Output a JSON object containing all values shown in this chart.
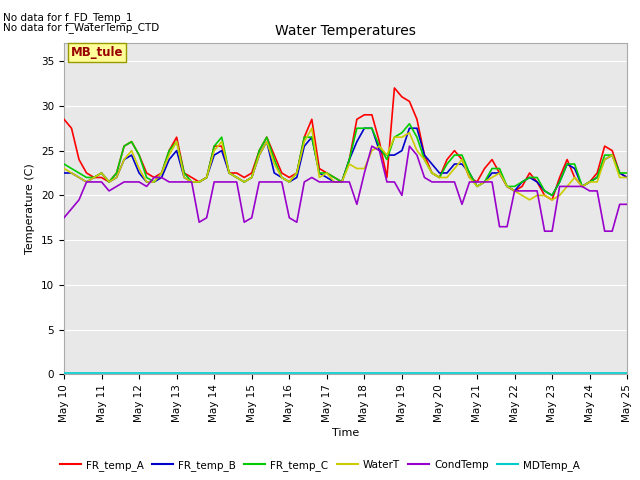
{
  "title": "Water Temperatures",
  "xlabel": "Time",
  "ylabel": "Temperature (C)",
  "ylim": [
    0,
    37
  ],
  "yticks": [
    0,
    5,
    10,
    15,
    20,
    25,
    30,
    35
  ],
  "fig_bg_color": "#ffffff",
  "plot_bg_color": "#e8e8e8",
  "annotations": [
    "No data for f_FD_Temp_1",
    "No data for f_WaterTemp_CTD"
  ],
  "mb_tule_label": "MB_tule",
  "mb_tule_color": "#990000",
  "mb_tule_bg": "#ffff99",
  "mb_tule_edge": "#999900",
  "legend_entries": [
    {
      "label": "FR_temp_A",
      "color": "#ff0000"
    },
    {
      "label": "FR_temp_B",
      "color": "#0000cc"
    },
    {
      "label": "FR_temp_C",
      "color": "#00cc00"
    },
    {
      "label": "WaterT",
      "color": "#cccc00"
    },
    {
      "label": "CondTemp",
      "color": "#9900cc"
    },
    {
      "label": "MDTemp_A",
      "color": "#00cccc"
    }
  ],
  "date_ticks": [
    "May 10",
    "May 11",
    "May 12",
    "May 13",
    "May 14",
    "May 15",
    "May 16",
    "May 17",
    "May 18",
    "May 19",
    "May 20",
    "May 21",
    "May 22",
    "May 23",
    "May 24",
    "May 25"
  ],
  "series": {
    "FR_temp_A": {
      "color": "#ff0000",
      "lw": 1.2,
      "x": [
        0.0,
        0.2,
        0.4,
        0.6,
        0.8,
        1.0,
        1.2,
        1.4,
        1.6,
        1.8,
        2.0,
        2.2,
        2.4,
        2.6,
        2.8,
        3.0,
        3.2,
        3.4,
        3.6,
        3.8,
        4.0,
        4.2,
        4.4,
        4.6,
        4.8,
        5.0,
        5.2,
        5.4,
        5.6,
        5.8,
        6.0,
        6.2,
        6.4,
        6.6,
        6.8,
        7.0,
        7.2,
        7.4,
        7.6,
        7.8,
        8.0,
        8.2,
        8.4,
        8.6,
        8.8,
        9.0,
        9.2,
        9.4,
        9.6,
        9.8,
        10.0,
        10.2,
        10.4,
        10.6,
        10.8,
        11.0,
        11.2,
        11.4,
        11.6,
        11.8,
        12.0,
        12.2,
        12.4,
        12.6,
        12.8,
        13.0,
        13.2,
        13.4,
        13.6,
        13.8,
        14.0,
        14.2,
        14.4,
        14.6,
        14.8,
        15.0
      ],
      "y": [
        28.5,
        27.5,
        24.0,
        22.5,
        22.0,
        22.0,
        21.5,
        22.5,
        25.5,
        26.0,
        24.5,
        22.5,
        22.0,
        22.5,
        25.0,
        26.5,
        22.5,
        22.0,
        21.5,
        22.0,
        25.5,
        25.5,
        22.5,
        22.5,
        22.0,
        22.5,
        25.0,
        26.5,
        24.5,
        22.5,
        22.0,
        22.5,
        26.5,
        28.5,
        23.0,
        22.5,
        22.0,
        21.5,
        24.0,
        28.5,
        29.0,
        29.0,
        26.0,
        22.0,
        32.0,
        31.0,
        30.5,
        28.5,
        24.5,
        22.5,
        22.0,
        24.0,
        25.0,
        24.0,
        22.0,
        21.5,
        23.0,
        24.0,
        22.5,
        21.0,
        20.5,
        21.0,
        22.5,
        21.5,
        20.0,
        19.5,
        22.0,
        24.0,
        22.0,
        21.0,
        21.5,
        22.5,
        25.5,
        25.0,
        22.5,
        22.0
      ]
    },
    "FR_temp_B": {
      "color": "#0000cc",
      "lw": 1.2,
      "x": [
        0.0,
        0.2,
        0.4,
        0.6,
        0.8,
        1.0,
        1.2,
        1.4,
        1.6,
        1.8,
        2.0,
        2.2,
        2.4,
        2.6,
        2.8,
        3.0,
        3.2,
        3.4,
        3.6,
        3.8,
        4.0,
        4.2,
        4.4,
        4.6,
        4.8,
        5.0,
        5.2,
        5.4,
        5.6,
        5.8,
        6.0,
        6.2,
        6.4,
        6.6,
        6.8,
        7.0,
        7.2,
        7.4,
        7.6,
        7.8,
        8.0,
        8.2,
        8.4,
        8.6,
        8.8,
        9.0,
        9.2,
        9.4,
        9.6,
        9.8,
        10.0,
        10.2,
        10.4,
        10.6,
        10.8,
        11.0,
        11.2,
        11.4,
        11.6,
        11.8,
        12.0,
        12.2,
        12.4,
        12.6,
        12.8,
        13.0,
        13.2,
        13.4,
        13.6,
        13.8,
        14.0,
        14.2,
        14.4,
        14.6,
        14.8,
        15.0
      ],
      "y": [
        22.5,
        22.5,
        22.0,
        21.5,
        22.0,
        22.5,
        21.5,
        22.0,
        24.0,
        24.5,
        22.5,
        21.5,
        21.5,
        22.0,
        24.0,
        25.0,
        22.0,
        21.5,
        21.5,
        22.0,
        24.5,
        25.0,
        22.5,
        22.0,
        21.5,
        22.0,
        24.5,
        26.0,
        22.5,
        22.0,
        21.5,
        22.0,
        25.5,
        26.5,
        22.5,
        22.0,
        21.5,
        21.5,
        24.0,
        26.0,
        27.5,
        27.5,
        25.0,
        24.5,
        24.5,
        25.0,
        27.5,
        27.5,
        24.5,
        23.5,
        22.5,
        22.5,
        23.5,
        23.5,
        22.5,
        21.0,
        21.5,
        22.5,
        22.5,
        21.0,
        20.5,
        21.5,
        22.0,
        21.5,
        20.5,
        20.0,
        21.5,
        23.5,
        23.0,
        21.0,
        21.5,
        22.0,
        24.0,
        24.5,
        22.5,
        22.0
      ]
    },
    "FR_temp_C": {
      "color": "#00cc00",
      "lw": 1.2,
      "x": [
        0.0,
        0.2,
        0.4,
        0.6,
        0.8,
        1.0,
        1.2,
        1.4,
        1.6,
        1.8,
        2.0,
        2.2,
        2.4,
        2.6,
        2.8,
        3.0,
        3.2,
        3.4,
        3.6,
        3.8,
        4.0,
        4.2,
        4.4,
        4.6,
        4.8,
        5.0,
        5.2,
        5.4,
        5.6,
        5.8,
        6.0,
        6.2,
        6.4,
        6.6,
        6.8,
        7.0,
        7.2,
        7.4,
        7.6,
        7.8,
        8.0,
        8.2,
        8.4,
        8.6,
        8.8,
        9.0,
        9.2,
        9.4,
        9.6,
        9.8,
        10.0,
        10.2,
        10.4,
        10.6,
        10.8,
        11.0,
        11.2,
        11.4,
        11.6,
        11.8,
        12.0,
        12.2,
        12.4,
        12.6,
        12.8,
        13.0,
        13.2,
        13.4,
        13.6,
        13.8,
        14.0,
        14.2,
        14.4,
        14.6,
        14.8,
        15.0
      ],
      "y": [
        23.5,
        23.0,
        22.5,
        22.0,
        22.0,
        22.5,
        21.5,
        22.5,
        25.5,
        26.0,
        24.5,
        22.0,
        21.5,
        22.5,
        25.0,
        26.0,
        22.5,
        21.5,
        21.5,
        22.0,
        25.5,
        26.5,
        22.5,
        22.0,
        21.5,
        22.0,
        25.0,
        26.5,
        24.0,
        22.0,
        21.5,
        22.5,
        26.5,
        26.5,
        22.5,
        22.5,
        22.0,
        21.5,
        24.0,
        27.5,
        27.5,
        27.5,
        25.5,
        24.0,
        26.5,
        27.0,
        28.0,
        26.5,
        24.0,
        22.5,
        22.0,
        23.5,
        24.5,
        24.5,
        22.5,
        21.0,
        21.5,
        23.0,
        23.0,
        21.0,
        21.0,
        21.5,
        22.0,
        22.0,
        20.5,
        20.0,
        21.5,
        23.5,
        23.5,
        21.0,
        21.5,
        22.0,
        24.5,
        24.5,
        22.5,
        22.5
      ]
    },
    "WaterT": {
      "color": "#cccc00",
      "lw": 1.2,
      "x": [
        0.0,
        0.2,
        0.4,
        0.6,
        0.8,
        1.0,
        1.2,
        1.4,
        1.6,
        1.8,
        2.0,
        2.2,
        2.4,
        2.6,
        2.8,
        3.0,
        3.2,
        3.4,
        3.6,
        3.8,
        4.0,
        4.2,
        4.4,
        4.6,
        4.8,
        5.0,
        5.2,
        5.4,
        5.6,
        5.8,
        6.0,
        6.2,
        6.4,
        6.6,
        6.8,
        7.0,
        7.2,
        7.4,
        7.6,
        7.8,
        8.0,
        8.2,
        8.4,
        8.6,
        8.8,
        9.0,
        9.2,
        9.4,
        9.6,
        9.8,
        10.0,
        10.2,
        10.4,
        10.6,
        10.8,
        11.0,
        11.2,
        11.4,
        11.6,
        11.8,
        12.0,
        12.2,
        12.4,
        12.6,
        12.8,
        13.0,
        13.2,
        13.4,
        13.6,
        13.8,
        14.0,
        14.2,
        14.4,
        14.6,
        14.8,
        15.0
      ],
      "y": [
        23.0,
        22.5,
        22.0,
        21.5,
        22.0,
        22.5,
        21.5,
        22.0,
        24.0,
        25.0,
        23.0,
        21.5,
        21.5,
        22.5,
        24.5,
        26.0,
        22.0,
        21.5,
        21.5,
        22.0,
        25.0,
        26.0,
        22.5,
        22.0,
        21.5,
        22.0,
        24.5,
        26.0,
        23.5,
        22.0,
        21.5,
        22.5,
        26.0,
        27.5,
        22.0,
        22.5,
        21.5,
        21.5,
        23.5,
        23.0,
        23.0,
        25.0,
        25.5,
        24.5,
        26.5,
        26.5,
        27.0,
        25.0,
        24.0,
        22.5,
        22.0,
        22.0,
        23.0,
        24.0,
        22.0,
        21.0,
        21.5,
        22.0,
        22.5,
        21.0,
        20.5,
        20.0,
        19.5,
        20.0,
        20.0,
        19.5,
        20.0,
        21.0,
        22.0,
        21.0,
        21.5,
        21.5,
        24.0,
        24.5,
        22.0,
        22.0
      ]
    },
    "CondTemp": {
      "color": "#9900cc",
      "lw": 1.2,
      "x": [
        0.0,
        0.2,
        0.4,
        0.6,
        0.8,
        1.0,
        1.2,
        1.4,
        1.6,
        1.8,
        2.0,
        2.2,
        2.4,
        2.6,
        2.8,
        3.0,
        3.2,
        3.4,
        3.6,
        3.8,
        4.0,
        4.2,
        4.4,
        4.6,
        4.8,
        5.0,
        5.2,
        5.4,
        5.6,
        5.8,
        6.0,
        6.2,
        6.4,
        6.6,
        6.8,
        7.0,
        7.2,
        7.4,
        7.6,
        7.8,
        8.0,
        8.2,
        8.4,
        8.6,
        8.8,
        9.0,
        9.2,
        9.4,
        9.6,
        9.8,
        10.0,
        10.2,
        10.4,
        10.6,
        10.8,
        11.0,
        11.2,
        11.4,
        11.6,
        11.8,
        12.0,
        12.2,
        12.4,
        12.6,
        12.8,
        13.0,
        13.2,
        13.4,
        13.6,
        13.8,
        14.0,
        14.2,
        14.4,
        14.6,
        14.8,
        15.0
      ],
      "y": [
        17.5,
        18.5,
        19.5,
        21.5,
        21.5,
        21.5,
        20.5,
        21.0,
        21.5,
        21.5,
        21.5,
        21.0,
        22.0,
        22.0,
        21.5,
        21.5,
        21.5,
        21.5,
        17.0,
        17.5,
        21.5,
        21.5,
        21.5,
        21.5,
        17.0,
        17.5,
        21.5,
        21.5,
        21.5,
        21.5,
        17.5,
        17.0,
        21.5,
        22.0,
        21.5,
        21.5,
        21.5,
        21.5,
        21.5,
        19.0,
        22.5,
        25.5,
        25.0,
        21.5,
        21.5,
        20.0,
        25.5,
        24.5,
        22.0,
        21.5,
        21.5,
        21.5,
        21.5,
        19.0,
        21.5,
        21.5,
        21.5,
        21.5,
        16.5,
        16.5,
        20.5,
        20.5,
        20.5,
        20.5,
        16.0,
        16.0,
        21.0,
        21.0,
        21.0,
        21.0,
        20.5,
        20.5,
        16.0,
        16.0,
        19.0,
        19.0
      ]
    },
    "MDTemp_A": {
      "color": "#00cccc",
      "lw": 1.2,
      "x": [
        0.0,
        15.0
      ],
      "y": [
        0.15,
        0.15
      ]
    }
  }
}
